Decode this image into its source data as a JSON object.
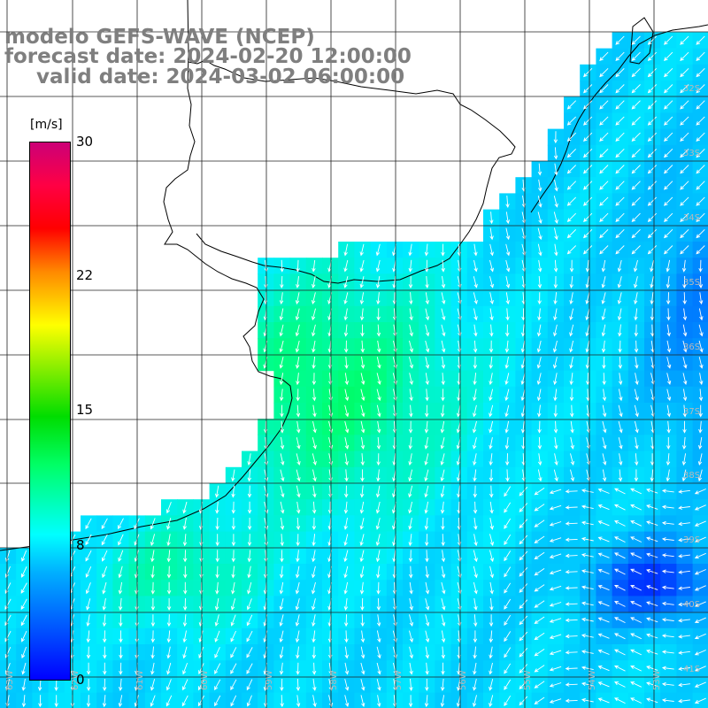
{
  "title": {
    "model": "modelo GEFS-WAVE (NCEP)",
    "forecast": "forecast date: 2024-02-20 12:00:00",
    "valid": "valid date: 2024-03-02 06:00:00"
  },
  "colorbar": {
    "unit": "[m/s]",
    "ticks": [
      "30",
      "22",
      "15",
      "8",
      "0"
    ],
    "colors": [
      "#0000ff",
      "#00b0ff",
      "#00ffff",
      "#00ff66",
      "#00dd00",
      "#ffff00",
      "#ff8800",
      "#ff0000",
      "#cc0077"
    ]
  },
  "latitude_labels": [
    "32S",
    "33S",
    "34S",
    "35S",
    "36S",
    "37S",
    "38S",
    "39S",
    "40S",
    "41S"
  ],
  "longitude_labels": [
    "63W",
    "62W",
    "61W",
    "60W",
    "59W",
    "58W",
    "57W",
    "56W",
    "55W",
    "54W",
    "53W"
  ],
  "colors": {
    "land": "#ffffff",
    "coastline": "#000000",
    "grid": "#222222",
    "arrow": "#ffffff",
    "title": "#7f7f7f"
  }
}
